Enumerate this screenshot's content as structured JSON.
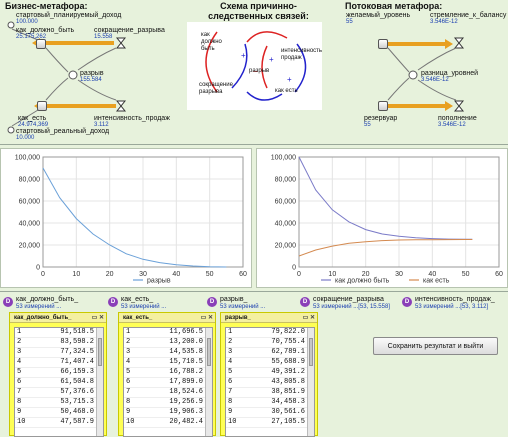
{
  "headers": {
    "business": "Бизнес-метафора:",
    "causal": "Схема причинно-следственных связей:",
    "flow": "Потоковая метафора:"
  },
  "business": {
    "planned_income": {
      "label": "стартовый_планируемый_доход",
      "value": "100.000"
    },
    "should_be": {
      "label": "как_должно_быть",
      "value": "25.175,262"
    },
    "gap_reduction": {
      "label": "сокращение_разрыва",
      "value": "15.558"
    },
    "gap": {
      "label": "разрыв",
      "value": "155.584"
    },
    "as_is": {
      "label": "как_есть",
      "value": "24.974,369"
    },
    "sales_intensity": {
      "label": "интенсивность_продаж",
      "value": "3.112"
    },
    "real_income": {
      "label": "стартовый_реальный_доход",
      "value": "10.000"
    }
  },
  "causal": {
    "should_be": "как должно быть",
    "sales_intensity": "интенсивность продаж",
    "gap_reduction": "сокращение разрыва",
    "as_is": "как есть",
    "gap": "разрыв"
  },
  "flow": {
    "desired_level": {
      "label": "желаемый_уровень",
      "value": "55"
    },
    "balance_drive": {
      "label": "стремление_к_балансу",
      "value": "3.546E-12"
    },
    "level_diff": {
      "label": "разница_уровней",
      "value": "3.546E-12"
    },
    "reservoir": {
      "label": "резервуар",
      "value": "55"
    },
    "replenish": {
      "label": "пополнение",
      "value": "3.546E-12"
    }
  },
  "chart_data": [
    {
      "type": "line",
      "title": "",
      "x": [
        0,
        5,
        10,
        15,
        20,
        25,
        30,
        35,
        40,
        45,
        50,
        55
      ],
      "series": [
        {
          "name": "разрыв",
          "values": [
            90000,
            63000,
            44000,
            30000,
            20000,
            12000,
            7000,
            4000,
            2000,
            900,
            300,
            0
          ]
        }
      ],
      "xlim": [
        0,
        60
      ],
      "ylim": [
        0,
        100000
      ],
      "xticks": [
        "0",
        "10",
        "20",
        "30",
        "40",
        "50",
        "60"
      ],
      "yticks": [
        "0",
        "20,000",
        "40,000",
        "60,000",
        "80,000",
        "100,000"
      ],
      "grid": true,
      "legend": "bottom"
    },
    {
      "type": "line",
      "title": "",
      "x": [
        0,
        5,
        10,
        15,
        20,
        25,
        30,
        35,
        40,
        45,
        50,
        52
      ],
      "series": [
        {
          "name": "как должно быть",
          "values": [
            100000,
            70000,
            52000,
            41000,
            34000,
            30000,
            28000,
            26500,
            25800,
            25400,
            25200,
            25175
          ]
        },
        {
          "name": "как есть",
          "values": [
            10000,
            15500,
            19000,
            21500,
            23000,
            24000,
            24500,
            24700,
            24850,
            24920,
            24960,
            24974
          ]
        }
      ],
      "xlim": [
        0,
        60
      ],
      "ylim": [
        0,
        100000
      ],
      "xticks": [
        "0",
        "10",
        "20",
        "30",
        "40",
        "50",
        "60"
      ],
      "yticks": [
        "0",
        "20,000",
        "40,000",
        "60,000",
        "80,000",
        "100,000"
      ],
      "grid": true,
      "legend": "bottom"
    }
  ],
  "datasets": [
    {
      "label": "как_должно_быть_",
      "sub": "53 измерений ..."
    },
    {
      "label": "как_есть_",
      "sub": "53 измерений ..."
    },
    {
      "label": "разрыв_",
      "sub": "53 измерений ..."
    },
    {
      "label": "сокращение_разрыва",
      "sub": "53 измерений ...[53, 15.558]"
    },
    {
      "label": "интенсивность_продаж_",
      "sub": "53 измерений ...[53, 3.112]"
    }
  ],
  "tables": [
    {
      "title": "как_должно_быть_",
      "rows": [
        [
          "1",
          "91,518.5"
        ],
        [
          "2",
          "83,598.2"
        ],
        [
          "3",
          "77,324.5"
        ],
        [
          "4",
          "71,407.4"
        ],
        [
          "5",
          "66,159.3"
        ],
        [
          "6",
          "61,504.8"
        ],
        [
          "7",
          "57,376.6"
        ],
        [
          "8",
          "53,715.3"
        ],
        [
          "9",
          "50,468.0"
        ],
        [
          "10",
          "47,587.9"
        ]
      ]
    },
    {
      "title": "как_есть_",
      "rows": [
        [
          "1",
          "11,696.5"
        ],
        [
          "2",
          "13,200.0"
        ],
        [
          "3",
          "14,535.8"
        ],
        [
          "4",
          "15,710.5"
        ],
        [
          "5",
          "16,788.2"
        ],
        [
          "6",
          "17,899.0"
        ],
        [
          "7",
          "18,524.6"
        ],
        [
          "8",
          "19,256.9"
        ],
        [
          "9",
          "19,906.3"
        ],
        [
          "10",
          "20,482.4"
        ]
      ]
    },
    {
      "title": "разрыв_",
      "rows": [
        [
          "1",
          "79,822.0"
        ],
        [
          "2",
          "70,755.4"
        ],
        [
          "3",
          "62,789.1"
        ],
        [
          "4",
          "55,688.9"
        ],
        [
          "5",
          "49,391.2"
        ],
        [
          "6",
          "43,805.8"
        ],
        [
          "7",
          "38,851.9"
        ],
        [
          "8",
          "34,458.3"
        ],
        [
          "9",
          "30,561.6"
        ],
        [
          "10",
          "27,105.5"
        ]
      ]
    }
  ],
  "save_button": "Сохранить результат и выйти",
  "colors": {
    "accent_orange": "#e8a020",
    "gap_line": "#6aa0d8",
    "should_be_line": "#7b7bc8",
    "as_is_line": "#d48a50",
    "dataset_badge": "#8a3fb8"
  }
}
